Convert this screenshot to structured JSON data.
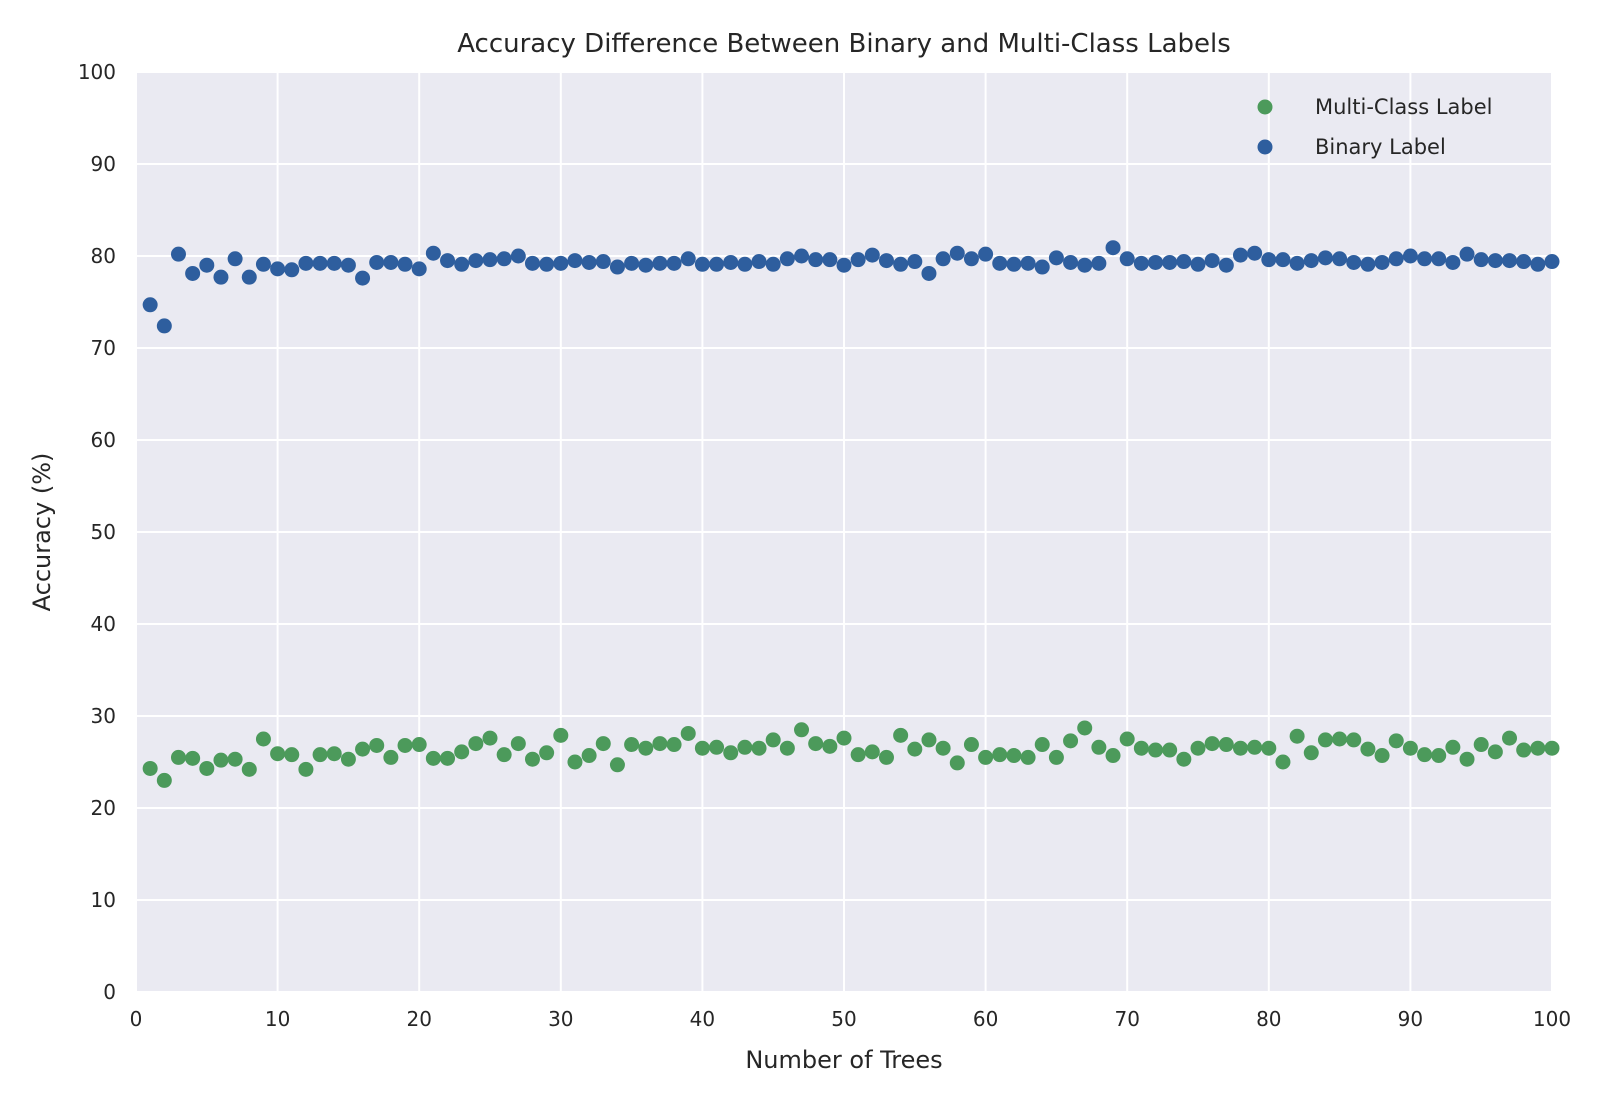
{
  "chart_data": {
    "type": "scatter",
    "title": "Accuracy Difference Between Binary and Multi-Class Labels",
    "xlabel": "Number of Trees",
    "ylabel": "Accuracy (%)",
    "xlim": [
      0,
      100
    ],
    "ylim": [
      0,
      100
    ],
    "xticks": [
      "0",
      "10",
      "20",
      "30",
      "40",
      "50",
      "60",
      "70",
      "80",
      "90",
      "100"
    ],
    "yticks": [
      "0",
      "10",
      "20",
      "30",
      "40",
      "50",
      "60",
      "70",
      "80",
      "90",
      "100"
    ],
    "grid": true,
    "background": "#EAEAF2",
    "legend_position": "top-right",
    "x": [
      1,
      2,
      3,
      4,
      5,
      6,
      7,
      8,
      9,
      10,
      11,
      12,
      13,
      14,
      15,
      16,
      17,
      18,
      19,
      20,
      21,
      22,
      23,
      24,
      25,
      26,
      27,
      28,
      29,
      30,
      31,
      32,
      33,
      34,
      35,
      36,
      37,
      38,
      39,
      40,
      41,
      42,
      43,
      44,
      45,
      46,
      47,
      48,
      49,
      50,
      51,
      52,
      53,
      54,
      55,
      56,
      57,
      58,
      59,
      60,
      61,
      62,
      63,
      64,
      65,
      66,
      67,
      68,
      69,
      70,
      71,
      72,
      73,
      74,
      75,
      76,
      77,
      78,
      79,
      80,
      81,
      82,
      83,
      84,
      85,
      86,
      87,
      88,
      89,
      90,
      91,
      92,
      93,
      94,
      95,
      96,
      97,
      98,
      99,
      100
    ],
    "series": [
      {
        "name": "Multi-Class Label",
        "color": "#4C9A5B",
        "values": [
          24.3,
          23.0,
          25.5,
          25.4,
          24.3,
          25.2,
          25.3,
          24.2,
          27.5,
          25.9,
          25.8,
          24.2,
          25.8,
          25.9,
          25.3,
          26.4,
          26.8,
          25.5,
          26.8,
          26.9,
          25.4,
          25.4,
          26.1,
          27.0,
          27.6,
          25.8,
          27.0,
          25.3,
          26.0,
          27.9,
          25.0,
          25.7,
          27.0,
          24.7,
          26.9,
          26.5,
          27.0,
          26.9,
          28.1,
          26.5,
          26.6,
          26.0,
          26.6,
          26.5,
          27.4,
          26.5,
          28.5,
          27.0,
          26.7,
          27.6,
          25.8,
          26.1,
          25.5,
          27.9,
          26.4,
          27.4,
          26.5,
          24.9,
          26.9,
          25.5,
          25.8,
          25.7,
          25.5,
          26.9,
          25.5,
          27.3,
          28.7,
          26.6,
          25.7,
          27.5,
          26.5,
          26.3,
          26.3,
          25.3,
          26.5,
          27.0,
          26.9,
          26.5,
          26.6,
          26.5,
          25.0,
          27.8,
          26.0,
          27.4,
          27.5,
          27.4,
          26.4,
          25.7,
          27.3,
          26.5,
          25.8,
          25.7,
          26.6,
          25.3,
          26.9,
          26.1,
          27.6,
          26.3,
          26.5,
          26.5
        ]
      },
      {
        "name": "Binary Label",
        "color": "#2E5E9E",
        "values": [
          74.7,
          72.4,
          80.2,
          78.1,
          79.0,
          77.7,
          79.7,
          77.7,
          79.1,
          78.6,
          78.5,
          79.2,
          79.2,
          79.2,
          79.0,
          77.6,
          79.3,
          79.3,
          79.1,
          78.6,
          80.3,
          79.5,
          79.1,
          79.5,
          79.6,
          79.7,
          80.0,
          79.2,
          79.1,
          79.2,
          79.5,
          79.3,
          79.4,
          78.8,
          79.2,
          79.0,
          79.2,
          79.2,
          79.7,
          79.1,
          79.1,
          79.3,
          79.1,
          79.4,
          79.1,
          79.7,
          80.0,
          79.6,
          79.6,
          79.0,
          79.6,
          80.1,
          79.5,
          79.1,
          79.4,
          78.1,
          79.7,
          80.3,
          79.7,
          80.2,
          79.2,
          79.1,
          79.2,
          78.8,
          79.8,
          79.3,
          79.0,
          79.2,
          80.9,
          79.7,
          79.2,
          79.3,
          79.3,
          79.4,
          79.1,
          79.5,
          79.0,
          80.1,
          80.3,
          79.6,
          79.6,
          79.2,
          79.5,
          79.8,
          79.7,
          79.3,
          79.1,
          79.3,
          79.7,
          80.0,
          79.7,
          79.7,
          79.3,
          80.2,
          79.6,
          79.5,
          79.5,
          79.4,
          79.1,
          79.4
        ]
      }
    ]
  }
}
